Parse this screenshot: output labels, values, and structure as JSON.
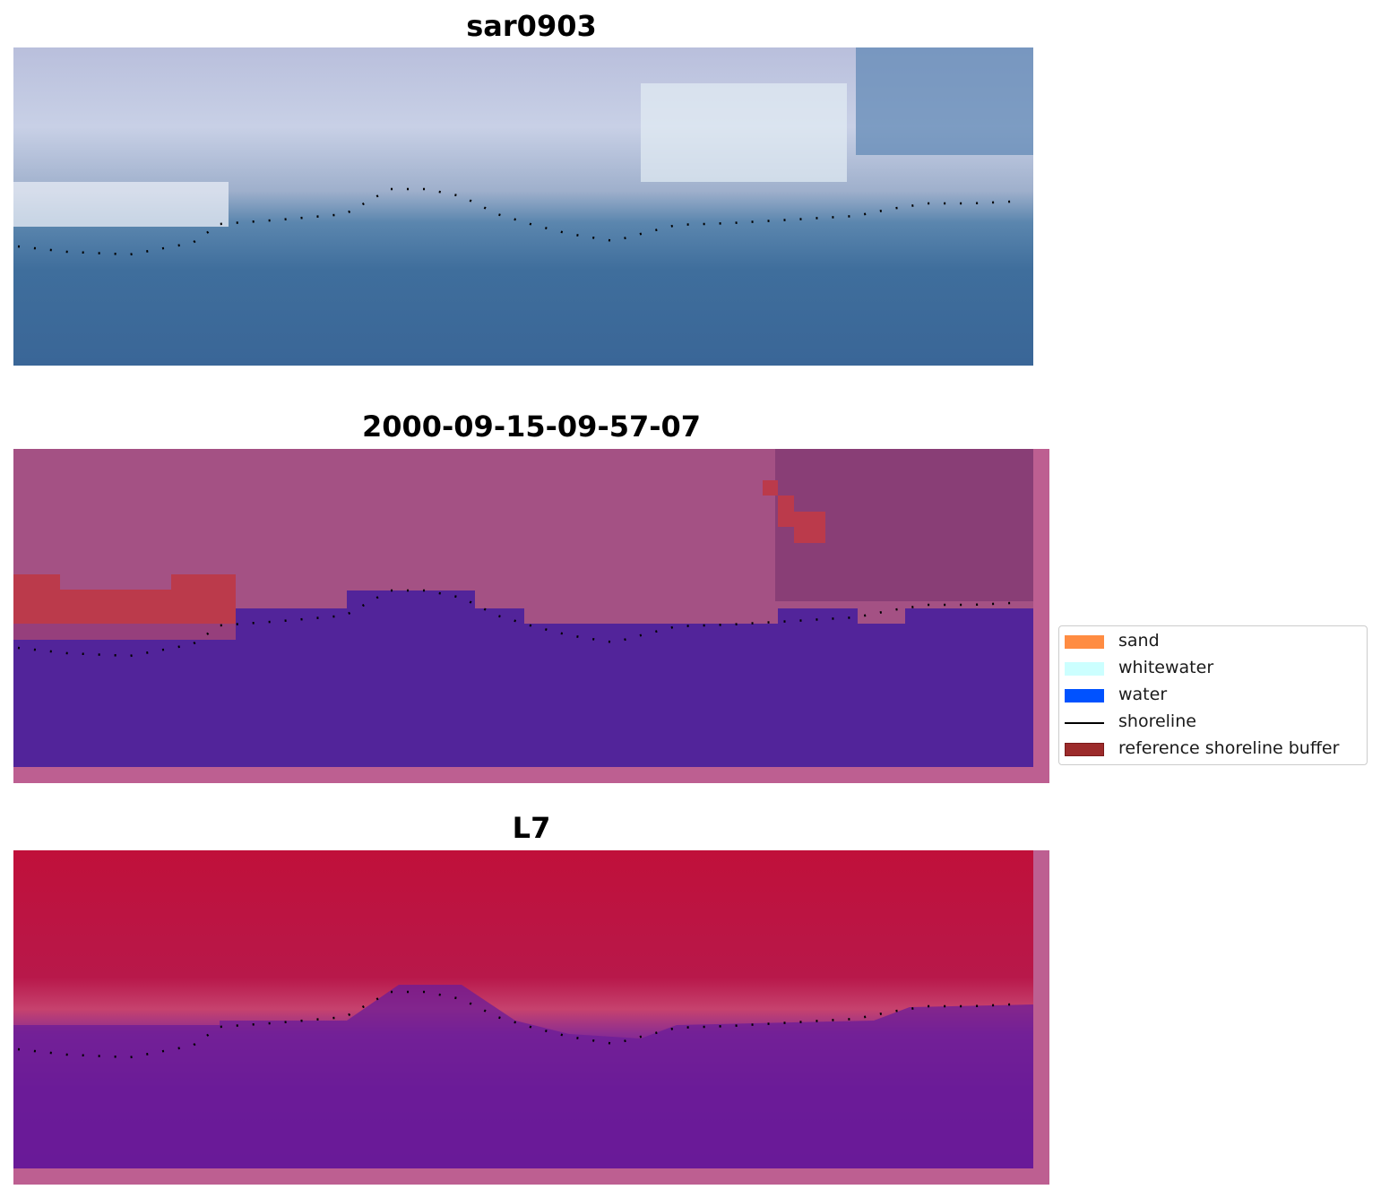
{
  "panels": [
    {
      "title": "sar0903"
    },
    {
      "title": "2000-09-15-09-57-07"
    },
    {
      "title": "L7"
    }
  ],
  "legend": {
    "items": [
      {
        "label": "sand",
        "color": "#ff8c42",
        "kind": "patch"
      },
      {
        "label": "whitewater",
        "color": "#ccffff",
        "kind": "patch"
      },
      {
        "label": "water",
        "color": "#0052ff",
        "kind": "patch"
      },
      {
        "label": "shoreline",
        "color": "#000000",
        "kind": "line"
      },
      {
        "label": "reference shoreline buffer",
        "color": "#9c2b2b",
        "kind": "patch"
      }
    ]
  }
}
